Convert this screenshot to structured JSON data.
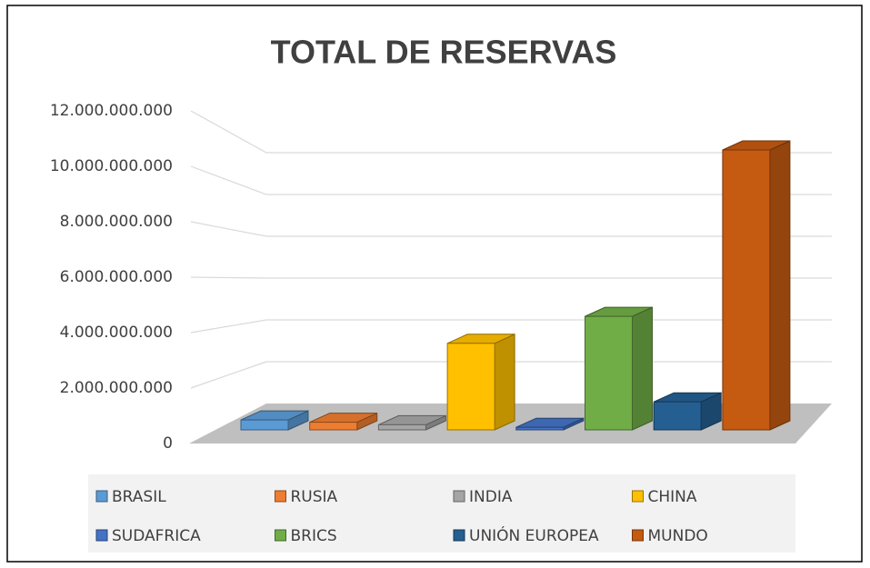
{
  "chart_data": {
    "type": "bar3d",
    "title": "TOTAL DE RESERVAS",
    "categories": [
      null
    ],
    "series": [
      {
        "name": "BRASIL",
        "color": "#5b9bd5",
        "values": [
          390000000
        ]
      },
      {
        "name": "RUSIA",
        "color": "#ed7d31",
        "values": [
          300000000
        ]
      },
      {
        "name": "INDIA",
        "color": "#a5a5a5",
        "values": [
          200000000
        ]
      },
      {
        "name": "CHINA",
        "color": "#ffc000",
        "values": [
          3400000000
        ]
      },
      {
        "name": "SUDAFRICA",
        "color": "#4472c4",
        "values": [
          100000000
        ]
      },
      {
        "name": "BRICS",
        "color": "#70ad47",
        "values": [
          4460000000
        ]
      },
      {
        "name": "UNIÓN EUROPEA",
        "color": "#255e91",
        "values": [
          1100000000
        ]
      },
      {
        "name": "MUNDO",
        "color": "#c55a11",
        "values": [
          11000000000
        ]
      }
    ],
    "ylim": [
      0,
      12000000000
    ],
    "yticks": [
      0,
      {
        "value": 2000000000,
        "label": "2.000.000.000"
      },
      {
        "value": 4000000000,
        "label": "4.000.000.000"
      },
      {
        "value": 6000000000,
        "label": "6.000.000.000"
      },
      {
        "value": 8000000000,
        "label": "8.000.000.000"
      },
      {
        "value": 10000000000,
        "label": "10.000.000.000"
      },
      {
        "value": 12000000000,
        "label": "12.000.000.000"
      }
    ],
    "grid": true,
    "legend": "bottom"
  }
}
